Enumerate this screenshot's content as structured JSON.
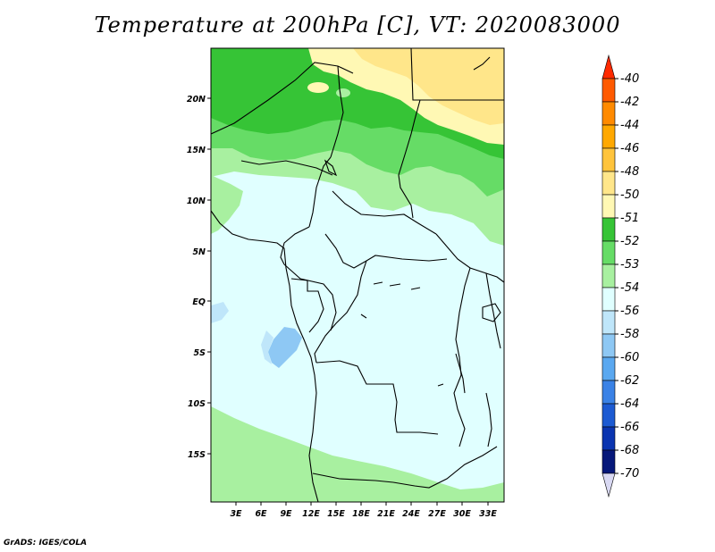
{
  "title": "Temperature at 200hPa [C], VT: 2020083000",
  "credit": "GrADS: IGES/COLA",
  "lat_labels": [
    "20N",
    "15N",
    "10N",
    "5N",
    "EQ",
    "5S",
    "10S",
    "15S"
  ],
  "lon_labels": [
    "3E",
    "6E",
    "9E",
    "12E",
    "15E",
    "18E",
    "21E",
    "24E",
    "27E",
    "30E",
    "33E"
  ],
  "colorbar": {
    "labels": [
      "-40",
      "-42",
      "-44",
      "-46",
      "-48",
      "-50",
      "-51",
      "-52",
      "-53",
      "-54",
      "-56",
      "-58",
      "-60",
      "-62",
      "-64",
      "-66",
      "-68",
      "-70"
    ],
    "colors": [
      "#ff2a00",
      "#ff5a00",
      "#ff8a00",
      "#ffa800",
      "#ffc43c",
      "#ffe68a",
      "#fff8b4",
      "#36c436",
      "#66dc66",
      "#a8f0a0",
      "#e0ffff",
      "#bfe6fa",
      "#8ec8f4",
      "#5aa8f0",
      "#3a82e6",
      "#1c5ad2",
      "#0a34b0",
      "#06187a",
      "#d9d9f3"
    ]
  },
  "colors": {
    "pale_cyan": "#e0ffff",
    "light_green": "#a8f0a0",
    "mid_green": "#66dc66",
    "green": "#36c436",
    "pale_yellow": "#fff8b4",
    "yellow": "#ffe68a",
    "light_blue": "#bfe6fa",
    "lake_blue": "#8ec8f4"
  }
}
